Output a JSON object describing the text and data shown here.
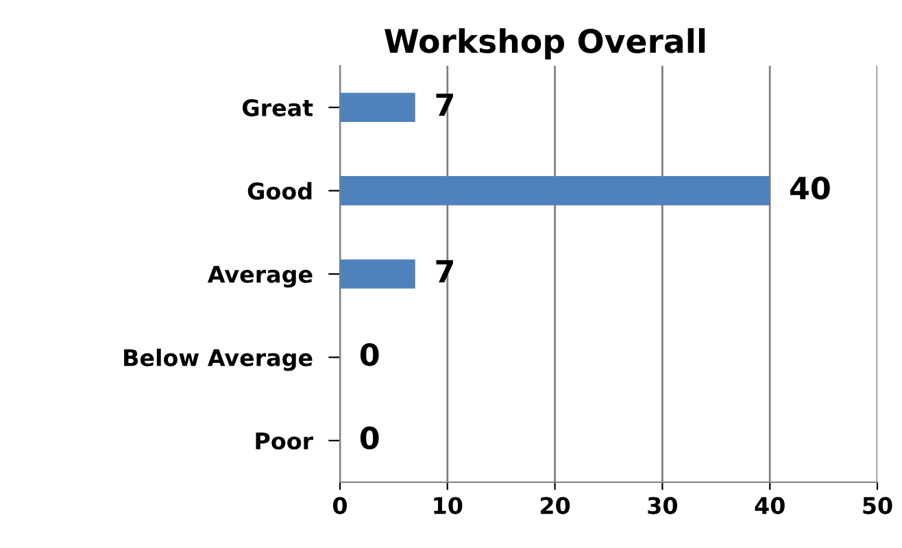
{
  "chart_data": {
    "type": "bar",
    "orientation": "horizontal",
    "title": "Workshop Overall",
    "categories": [
      "Great",
      "Good",
      "Average",
      "Below Average",
      "Poor"
    ],
    "values": [
      7,
      40,
      7,
      0,
      0
    ],
    "color": "#4f81bd",
    "xlim": [
      0,
      50
    ],
    "xticks": [
      0,
      10,
      20,
      30,
      40,
      50
    ],
    "grid": "x",
    "data_labels": true,
    "legend": false
  }
}
